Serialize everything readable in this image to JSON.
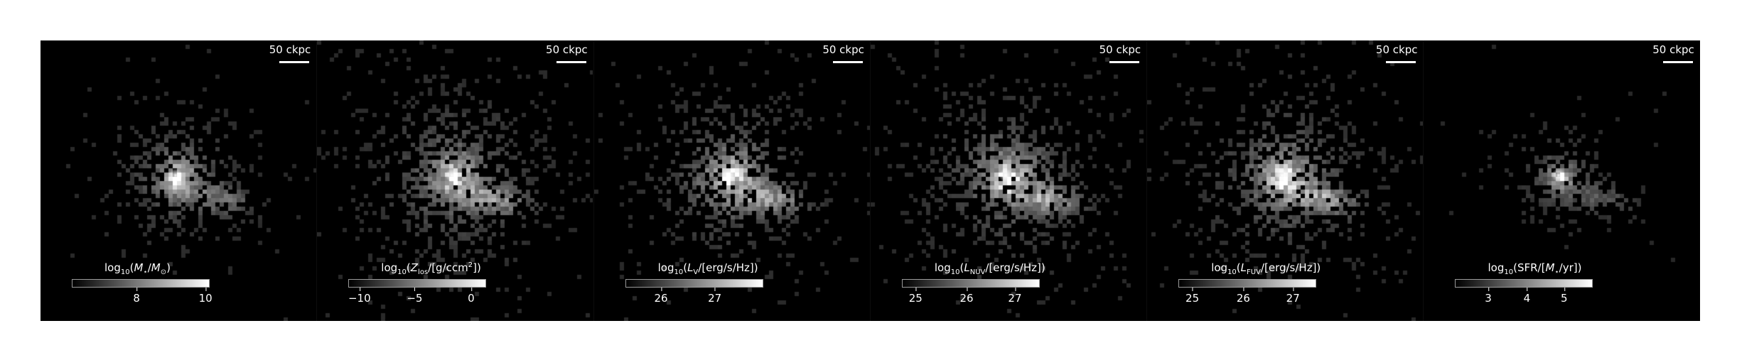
{
  "scalebar_text": "50 ckpc",
  "panels": [
    {
      "id": "mstar",
      "cbar_parts": [
        [
          "log",
          ""
        ],
        [
          "10",
          "sub"
        ],
        [
          "(",
          ""
        ],
        [
          "M",
          "i"
        ],
        [
          "⋆",
          "sub"
        ],
        [
          "/",
          ""
        ],
        [
          "M",
          "i"
        ],
        [
          "⊙",
          "sub"
        ],
        [
          ")",
          ""
        ]
      ],
      "ticks": [
        {
          "label": "8",
          "frac": 0.47
        },
        {
          "label": "10",
          "frac": 0.97
        }
      ],
      "peak": 1.0,
      "spread": 1.0
    },
    {
      "id": "zlos",
      "cbar_parts": [
        [
          "log",
          ""
        ],
        [
          "10",
          "sub"
        ],
        [
          "(",
          ""
        ],
        [
          "Z",
          "i"
        ],
        [
          "los",
          "sub"
        ],
        [
          "/[g/ccm",
          ""
        ],
        [
          "2",
          "sup"
        ],
        [
          "])",
          ""
        ]
      ],
      "ticks": [
        {
          "label": "−10",
          "frac": 0.08
        },
        {
          "label": "−5",
          "frac": 0.48
        },
        {
          "label": "0",
          "frac": 0.89
        }
      ],
      "peak": 0.85,
      "spread": 1.5
    },
    {
      "id": "lv",
      "cbar_parts": [
        [
          "log",
          ""
        ],
        [
          "10",
          "sub"
        ],
        [
          "(",
          ""
        ],
        [
          "L",
          "i"
        ],
        [
          "V",
          "sub"
        ],
        [
          "/[erg/s/Hz])",
          ""
        ]
      ],
      "ticks": [
        {
          "label": "26",
          "frac": 0.26
        },
        {
          "label": "27",
          "frac": 0.65
        }
      ],
      "peak": 1.0,
      "spread": 1.35
    },
    {
      "id": "lnuv",
      "cbar_parts": [
        [
          "log",
          ""
        ],
        [
          "10",
          "sub"
        ],
        [
          "(",
          ""
        ],
        [
          "L",
          "i"
        ],
        [
          "NUV",
          "sub"
        ],
        [
          "/[erg/s/Hz])",
          ""
        ]
      ],
      "ticks": [
        {
          "label": "25",
          "frac": 0.1
        },
        {
          "label": "26",
          "frac": 0.47
        },
        {
          "label": "27",
          "frac": 0.82
        }
      ],
      "peak": 1.0,
      "spread": 1.4
    },
    {
      "id": "lfuv",
      "cbar_parts": [
        [
          "log",
          ""
        ],
        [
          "10",
          "sub"
        ],
        [
          "(",
          ""
        ],
        [
          "L",
          "i"
        ],
        [
          "FUV",
          "sub"
        ],
        [
          "/[erg/s/Hz])",
          ""
        ]
      ],
      "ticks": [
        {
          "label": "25",
          "frac": 0.1
        },
        {
          "label": "26",
          "frac": 0.47
        },
        {
          "label": "27",
          "frac": 0.83
        }
      ],
      "peak": 1.0,
      "spread": 1.4
    },
    {
      "id": "sfr",
      "cbar_parts": [
        [
          "log",
          ""
        ],
        [
          "10",
          "sub"
        ],
        [
          "(SFR/[",
          ""
        ],
        [
          "M",
          "i"
        ],
        [
          "⋆",
          "sub"
        ],
        [
          "/yr])",
          ""
        ]
      ],
      "ticks": [
        {
          "label": "3",
          "frac": 0.24
        },
        {
          "label": "4",
          "frac": 0.52
        },
        {
          "label": "5",
          "frac": 0.79
        }
      ],
      "peak": 0.9,
      "spread": 0.7
    }
  ]
}
